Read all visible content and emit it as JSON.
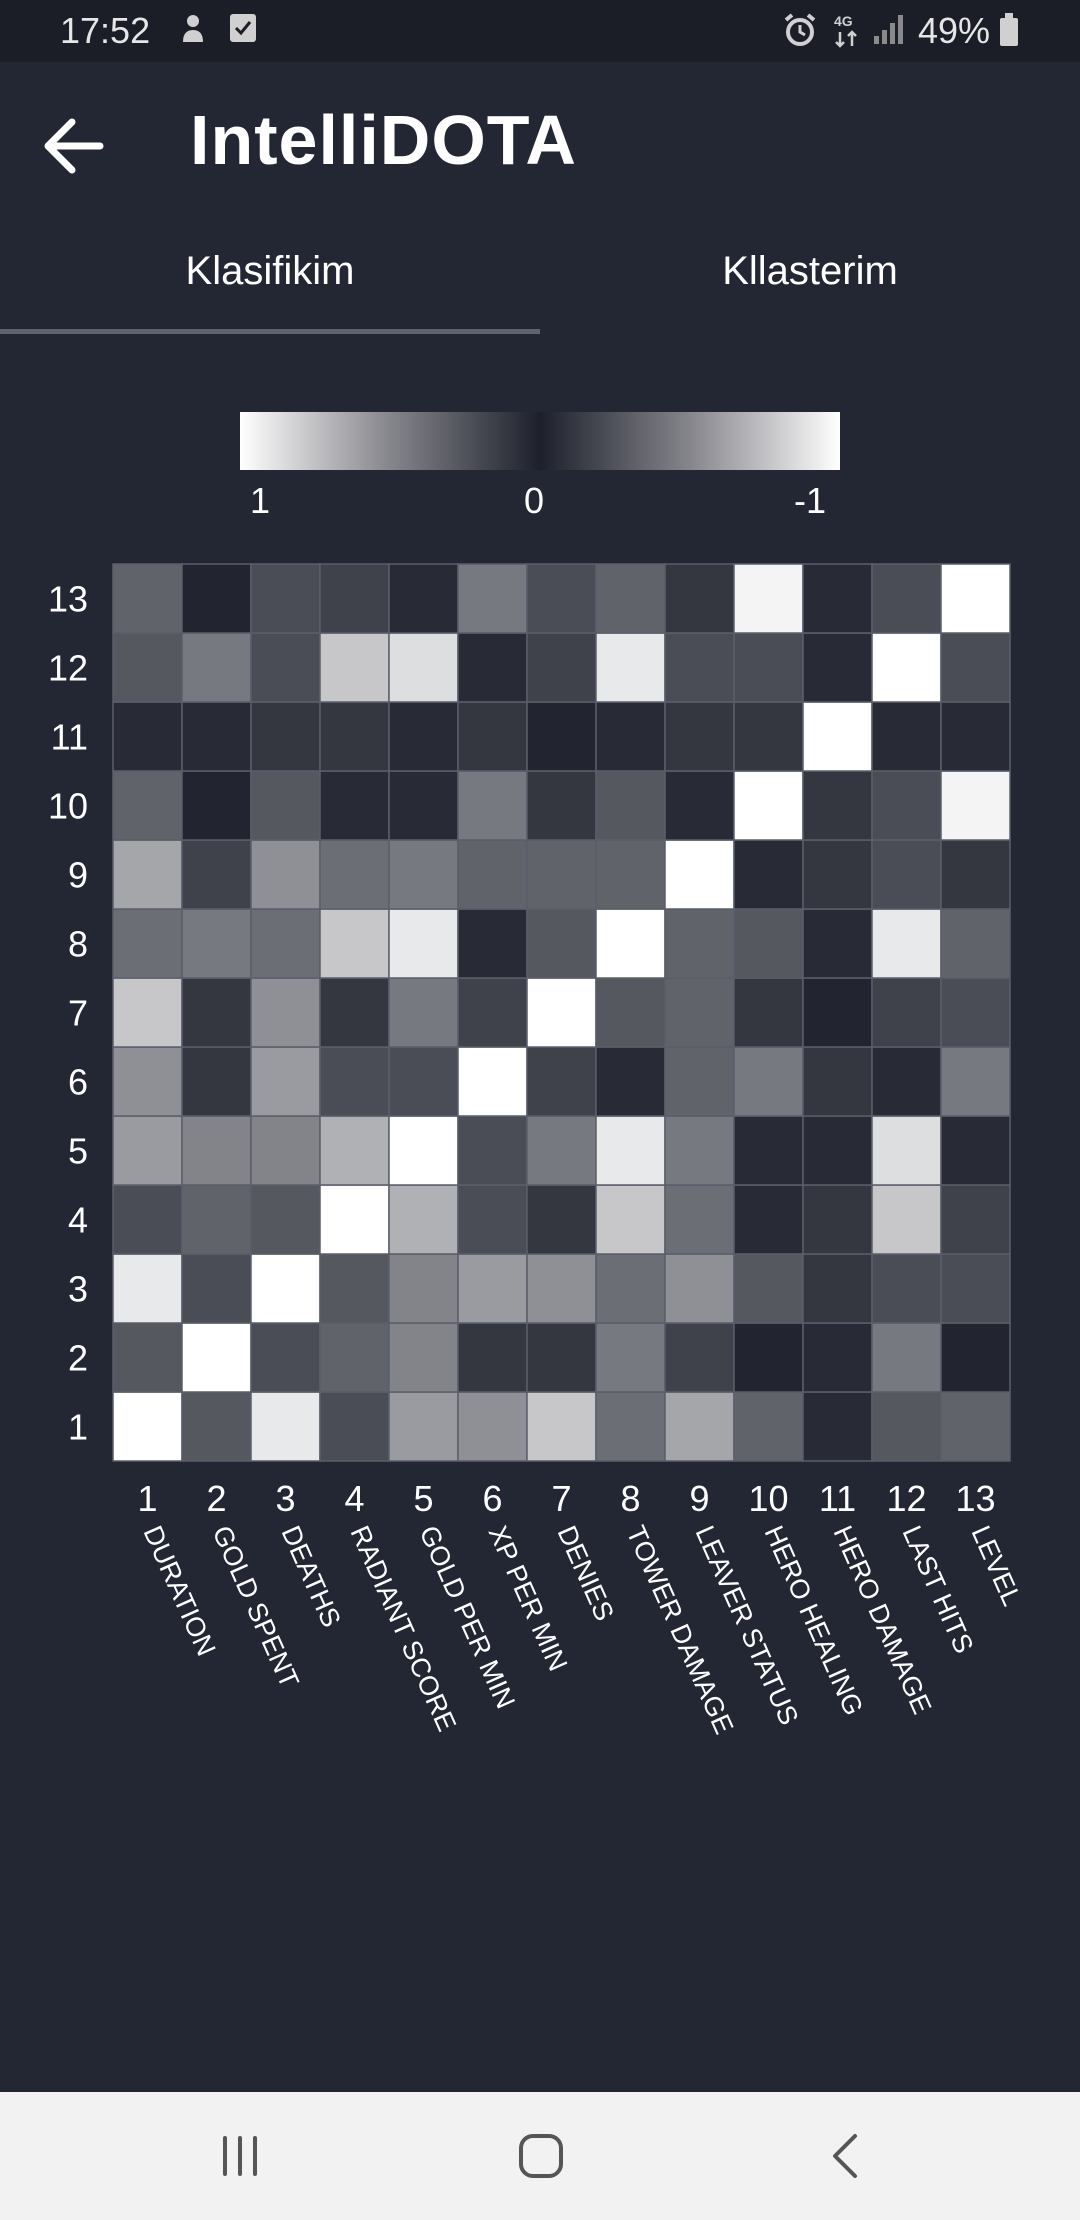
{
  "status_bar": {
    "time": "17:52",
    "left_icons": [
      "notification-icon",
      "checkbox-icon"
    ],
    "right_icons": [
      "alarm-icon",
      "network-4g-icon",
      "signal-icon"
    ],
    "battery": "49%"
  },
  "app_bar": {
    "title": "IntelliDOTA",
    "back_icon": "arrow-left-icon"
  },
  "tabs": [
    {
      "label": "Klasifikim",
      "selected": true
    },
    {
      "label": "Kllasterim",
      "selected": false
    }
  ],
  "colors": {
    "background": "#232734",
    "status_bar": "#1b1e27",
    "nav_bar": "#f2f2f2",
    "tab_indicator": "#5f6370"
  },
  "chart_data": {
    "type": "heatmap",
    "colorscale": "white at 1 and -1, dark at 0",
    "colorbar": {
      "labels": [
        "1",
        "0",
        "-1"
      ],
      "range": [
        1,
        -1
      ]
    },
    "x_tick_labels": [
      "1",
      "2",
      "3",
      "4",
      "5",
      "6",
      "7",
      "8",
      "9",
      "10",
      "11",
      "12",
      "13"
    ],
    "y_tick_labels": [
      "1",
      "2",
      "3",
      "4",
      "5",
      "6",
      "7",
      "8",
      "9",
      "10",
      "11",
      "12",
      "13"
    ],
    "feature_names": [
      "DURATION",
      "GOLD SPENT",
      "DEATHS",
      "RADIANT SCORE",
      "GOLD PER MIN",
      "XP PER MIN",
      "DENIES",
      "TOWER DAMAGE",
      "LEAVER STATUS",
      "HERO HEALING",
      "HERO DAMAGE",
      "LAST HITS",
      "LEVEL"
    ],
    "matrix": [
      [
        1.0,
        0.25,
        0.9,
        0.2,
        0.55,
        0.5,
        0.75,
        0.35,
        0.6,
        0.3,
        0.05,
        0.25,
        0.3
      ],
      [
        0.25,
        1.0,
        0.2,
        0.3,
        0.45,
        0.1,
        0.1,
        0.4,
        0.15,
        0.02,
        0.05,
        0.4,
        0.02
      ],
      [
        0.9,
        0.2,
        1.0,
        0.25,
        0.45,
        0.55,
        0.5,
        0.35,
        0.5,
        0.25,
        0.1,
        0.2,
        0.2
      ],
      [
        0.2,
        0.3,
        0.25,
        1.0,
        0.65,
        0.2,
        0.1,
        0.75,
        0.35,
        0.05,
        0.1,
        0.75,
        0.15
      ],
      [
        0.55,
        0.45,
        0.45,
        0.65,
        1.0,
        0.2,
        0.4,
        0.9,
        0.4,
        0.05,
        0.05,
        0.85,
        0.05
      ],
      [
        0.5,
        0.1,
        0.55,
        0.2,
        0.2,
        1.0,
        0.15,
        0.05,
        0.3,
        0.4,
        0.1,
        0.05,
        0.4
      ],
      [
        0.75,
        0.1,
        0.5,
        0.1,
        0.4,
        0.15,
        1.0,
        0.25,
        0.3,
        0.1,
        0.02,
        0.15,
        0.2
      ],
      [
        0.35,
        0.4,
        0.35,
        0.75,
        0.9,
        0.05,
        0.25,
        1.0,
        0.3,
        0.25,
        0.05,
        0.9,
        0.3
      ],
      [
        0.6,
        0.15,
        0.5,
        0.35,
        0.4,
        0.3,
        0.3,
        0.3,
        1.0,
        0.05,
        0.1,
        0.2,
        0.1
      ],
      [
        0.3,
        0.02,
        0.25,
        0.05,
        0.05,
        0.4,
        0.1,
        0.25,
        0.05,
        1.0,
        0.1,
        0.2,
        0.95
      ],
      [
        0.05,
        0.05,
        0.1,
        0.1,
        0.05,
        0.1,
        0.02,
        0.05,
        0.1,
        0.1,
        1.0,
        0.05,
        0.05
      ],
      [
        0.25,
        0.4,
        0.2,
        0.75,
        0.85,
        0.05,
        0.15,
        0.9,
        0.2,
        0.2,
        0.05,
        1.0,
        0.2
      ],
      [
        0.3,
        0.02,
        0.2,
        0.15,
        0.05,
        0.4,
        0.2,
        0.3,
        0.1,
        0.95,
        0.05,
        0.2,
        1.0
      ]
    ]
  },
  "nav_bar": {
    "icons": [
      "recent-apps-icon",
      "home-icon",
      "back-nav-icon"
    ]
  }
}
